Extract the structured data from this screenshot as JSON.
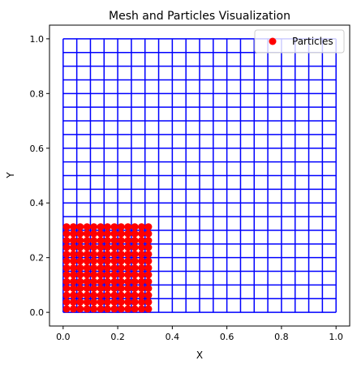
{
  "chart_data": {
    "type": "scatter",
    "title": "Mesh and Particles Visualization",
    "xlabel": "X",
    "ylabel": "Y",
    "xlim": [
      -0.05,
      1.05
    ],
    "ylim": [
      -0.05,
      1.05
    ],
    "xticks": [
      0.0,
      0.2,
      0.4,
      0.6,
      0.8,
      1.0
    ],
    "yticks": [
      0.0,
      0.2,
      0.4,
      0.6,
      0.8,
      1.0
    ],
    "xtick_labels": [
      "0.0",
      "0.2",
      "0.4",
      "0.6",
      "0.8",
      "1.0"
    ],
    "ytick_labels": [
      "0.0",
      "0.2",
      "0.4",
      "0.6",
      "0.8",
      "1.0"
    ],
    "grid": false,
    "legend": {
      "entries": [
        "Particles"
      ],
      "placement": "top-right"
    },
    "mesh": {
      "color": "#0000ff",
      "x_range": [
        0.0,
        1.0
      ],
      "y_range": [
        0.0,
        1.0
      ],
      "lines_x": [
        0.0,
        0.05,
        0.1,
        0.15,
        0.2,
        0.25,
        0.3,
        0.35,
        0.4,
        0.45,
        0.5,
        0.55,
        0.6,
        0.65,
        0.7,
        0.75,
        0.8,
        0.85,
        0.9,
        0.95,
        1.0
      ],
      "lines_y": [
        0.0,
        0.05,
        0.1,
        0.15,
        0.2,
        0.25,
        0.3,
        0.35,
        0.4,
        0.45,
        0.5,
        0.55,
        0.6,
        0.65,
        0.7,
        0.75,
        0.8,
        0.85,
        0.9,
        0.95,
        1.0
      ]
    },
    "series": [
      {
        "name": "Particles",
        "color": "#ff0000",
        "marker": "circle",
        "x_values": [
          0.0125,
          0.0375,
          0.0625,
          0.0875,
          0.1125,
          0.1375,
          0.1625,
          0.1875,
          0.2125,
          0.2375,
          0.2625,
          0.2875,
          0.3125
        ],
        "y_values": [
          0.0125,
          0.0375,
          0.0625,
          0.0875,
          0.1125,
          0.1375,
          0.1625,
          0.1875,
          0.2125,
          0.2375,
          0.2625,
          0.2875,
          0.3125
        ],
        "layout": "full grid of x_values by y_values"
      }
    ]
  }
}
